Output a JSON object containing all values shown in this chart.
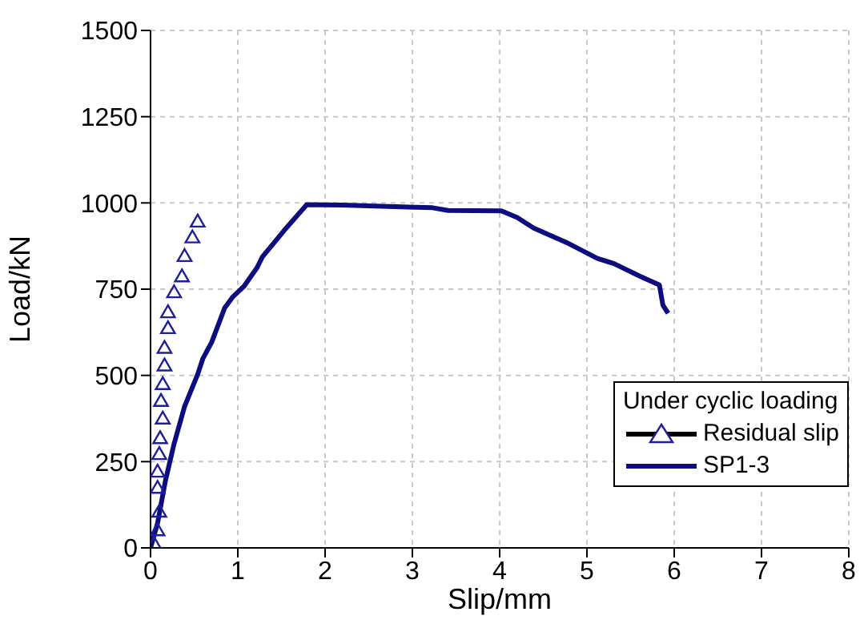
{
  "chart_data": {
    "type": "line",
    "xlabel": "Slip/mm",
    "ylabel": "Load/kN",
    "legend_title": "Under cyclic loading",
    "xlim": [
      0,
      8
    ],
    "xticks": [
      0,
      1,
      2,
      3,
      4,
      5,
      6,
      7,
      8
    ],
    "ylim": [
      0,
      1500
    ],
    "yticks": [
      0,
      250,
      500,
      750,
      1000,
      1250,
      1500
    ],
    "grid": true,
    "legend": "bottom right",
    "series": [
      {
        "name": "Residual slip",
        "type": "scatter",
        "marker": "triangle",
        "color": "#1f1f9a",
        "x": [
          0.04,
          0.08,
          0.1,
          0.08,
          0.08,
          0.1,
          0.11,
          0.14,
          0.12,
          0.14,
          0.16,
          0.16,
          0.2,
          0.2,
          0.27,
          0.36,
          0.39,
          0.48,
          0.54
        ],
        "values": [
          9,
          48,
          102,
          171,
          218,
          269,
          315,
          372,
          423,
          472,
          526,
          577,
          634,
          680,
          738,
          784,
          843,
          897,
          943
        ]
      },
      {
        "name": "SP1-3",
        "marker": "none",
        "color": "#0d0d80",
        "x": [
          0,
          0.08,
          0.17,
          0.27,
          0.39,
          0.54,
          0.6,
          0.7,
          0.85,
          0.94,
          1.07,
          1.22,
          1.28,
          1.53,
          1.79,
          2.19,
          3.23,
          3.41,
          4.02,
          4.2,
          4.39,
          4.76,
          5.12,
          5.31,
          5.61,
          5.83,
          5.87,
          5.93
        ],
        "values": [
          0,
          71,
          194,
          302,
          410,
          503,
          549,
          596,
          696,
          727,
          758,
          812,
          843,
          920,
          995,
          994,
          986,
          978,
          977,
          958,
          927,
          886,
          839,
          824,
          787,
          762,
          704,
          680
        ]
      }
    ]
  }
}
